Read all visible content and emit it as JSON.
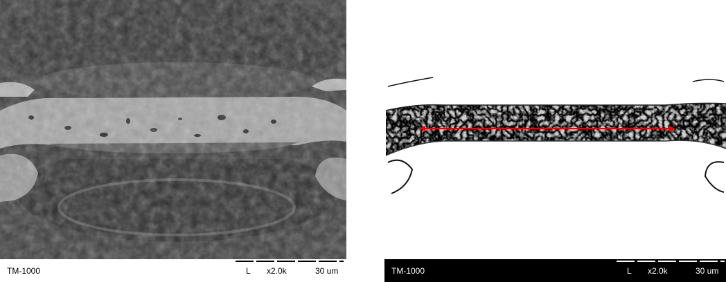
{
  "panels": [
    {
      "label": "TM-1000",
      "mode": "L",
      "magnification": "x2.0k",
      "scale": "30 um"
    },
    {
      "label": "TM-1000",
      "mode": "L",
      "magnification": "x2.0k",
      "scale": "30 um"
    }
  ]
}
